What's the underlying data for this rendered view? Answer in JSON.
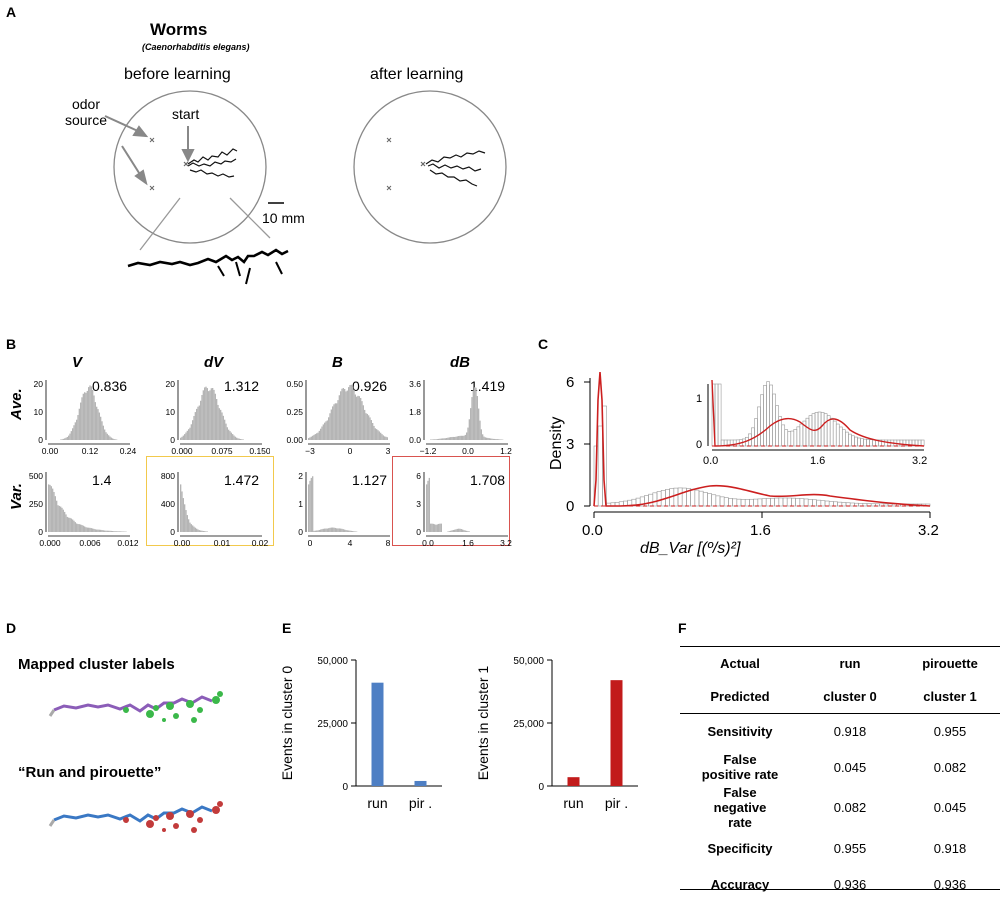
{
  "panel_a": {
    "label": "A",
    "title": "Worms",
    "subtitle": "(Caenorhabditis elegans)",
    "before_label": "before learning",
    "after_label": "after learning",
    "odor_label_1": "odor",
    "odor_label_2": "source",
    "start_label": "start",
    "scale_label": "10 mm"
  },
  "panel_b": {
    "label": "B",
    "row_labels": [
      "Ave.",
      "Var."
    ],
    "histograms": [
      {
        "title": "V",
        "row": "Ave.",
        "value": "0.836",
        "yticks": [
          "20",
          "10",
          "0"
        ],
        "xticks": [
          "0.00",
          "0.12",
          "0.24"
        ]
      },
      {
        "title": "dV",
        "row": "Ave.",
        "value": "1.312",
        "yticks": [
          "20",
          "10",
          "0"
        ],
        "xticks": [
          "0.000",
          "0.075",
          "0.150"
        ]
      },
      {
        "title": "B",
        "row": "Ave.",
        "value": "0.926",
        "yticks": [
          "0.50",
          "0.25",
          "0.00"
        ],
        "xticks": [
          "−3",
          "0",
          "3"
        ]
      },
      {
        "title": "dB",
        "row": "Ave.",
        "value": "1.419",
        "yticks": [
          "3.6",
          "1.8",
          "0.0"
        ],
        "xticks": [
          "−1.2",
          "0.0",
          "1.2"
        ]
      },
      {
        "title": "",
        "row": "Var.",
        "value": "1.4",
        "yticks": [
          "500",
          "250",
          "0"
        ],
        "xticks": [
          "0.000",
          "0.006",
          "0.012"
        ]
      },
      {
        "title": "",
        "row": "Var.",
        "value": "1.472",
        "yticks": [
          "800",
          "400",
          "0"
        ],
        "xticks": [
          "0.00",
          "0.01",
          "0.02"
        ]
      },
      {
        "title": "",
        "row": "Var.",
        "value": "1.127",
        "yticks": [
          "2",
          "1",
          "0"
        ],
        "xticks": [
          "0",
          "4",
          "8"
        ]
      },
      {
        "title": "",
        "row": "Var.",
        "value": "1.708",
        "yticks": [
          "6",
          "3",
          "0"
        ],
        "xticks": [
          "0.0",
          "1.6",
          "3.2"
        ]
      }
    ],
    "highlight_colors": {
      "dV_var": "#f2c94c",
      "dB_var": "#d9534f"
    }
  },
  "panel_c": {
    "label": "C",
    "ylabel": "Density",
    "xlabel": "dB_Var [(º/s)²]",
    "yticks": [
      "6",
      "3",
      "0"
    ],
    "xticks": [
      "0.0",
      "1.6",
      "3.2"
    ],
    "inset_yticks": [
      "1",
      "0"
    ],
    "inset_xticks": [
      "0.0",
      "1.6",
      "3.2"
    ],
    "fit_color": "#cc1f1f"
  },
  "panel_d": {
    "label": "D",
    "title1": "Mapped cluster labels",
    "title2": "“Run and pirouette”"
  },
  "panel_e": {
    "label": "E",
    "chart_data": [
      {
        "type": "bar",
        "categories": [
          "run",
          "pir ."
        ],
        "values": [
          41000,
          2000
        ],
        "ylabel": "Events in cluster 0",
        "yticks": [
          "50,000",
          "25,000",
          "0"
        ],
        "ylim": [
          0,
          50000
        ],
        "color": "#4e7fc4"
      },
      {
        "type": "bar",
        "categories": [
          "run",
          "pir ."
        ],
        "values": [
          3500,
          42000
        ],
        "ylabel": "Events in cluster 1",
        "yticks": [
          "50,000",
          "25,000",
          "0"
        ],
        "ylim": [
          0,
          50000
        ],
        "color": "#c21b1b"
      }
    ]
  },
  "panel_f": {
    "label": "F",
    "header": [
      [
        "Actual",
        "run",
        "pirouette"
      ],
      [
        "Predicted",
        "cluster 0",
        "cluster 1"
      ]
    ],
    "rows": [
      [
        "Sensitivity",
        "0.918",
        "0.955"
      ],
      [
        "False positive rate",
        "0.045",
        "0.082"
      ],
      [
        "False negative rate",
        "0.082",
        "0.045"
      ],
      [
        "Specificity",
        "0.955",
        "0.918"
      ],
      [
        "Accuracy",
        "0.936",
        "0.936"
      ]
    ]
  }
}
